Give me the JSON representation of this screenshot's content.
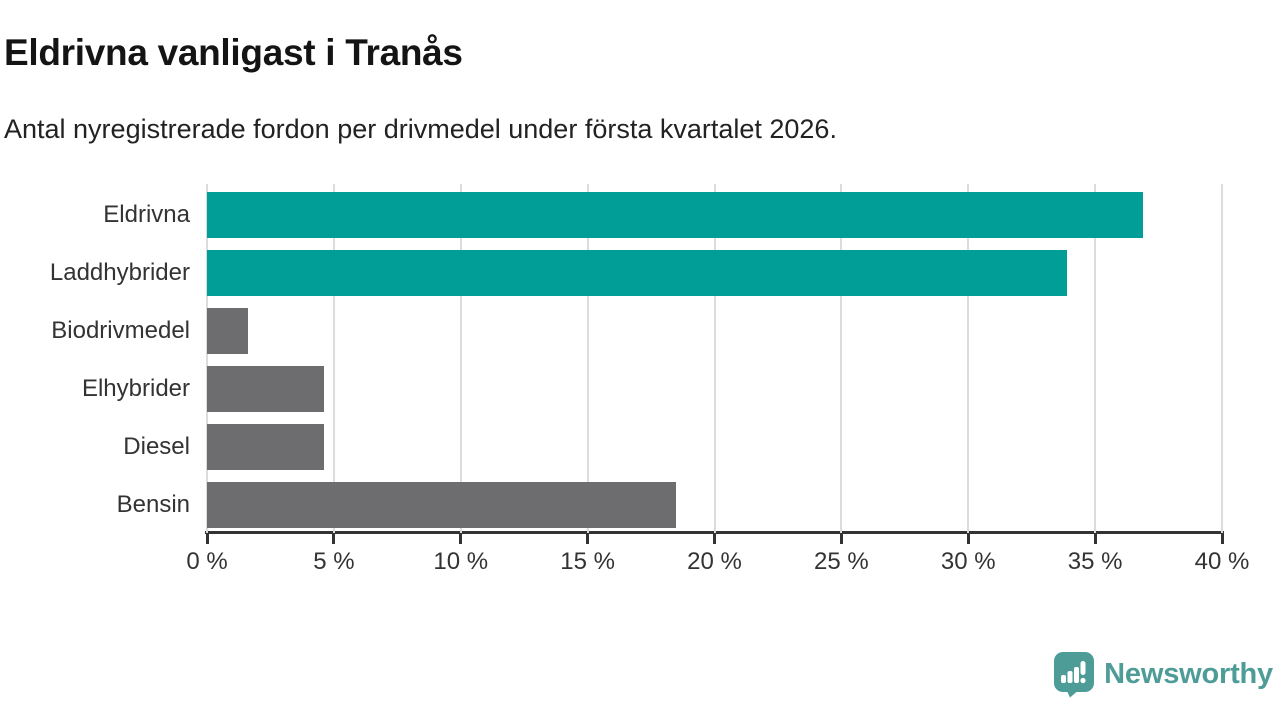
{
  "header": {
    "title": "Eldrivna vanligast i Tranås",
    "subtitle": "Antal nyregistrerade fordon per drivmedel under första kvartalet 2026."
  },
  "chart_data": {
    "type": "bar",
    "orientation": "horizontal",
    "title": "Eldrivna vanligast i Tranås",
    "subtitle": "Antal nyregistrerade fordon per drivmedel under första kvartalet 2026.",
    "categories": [
      "Eldrivna",
      "Laddhybrider",
      "Biodrivmedel",
      "Elhybrider",
      "Diesel",
      "Bensin"
    ],
    "values": [
      36.9,
      33.9,
      1.6,
      4.6,
      4.6,
      18.5
    ],
    "unit": "%",
    "xlabel": "",
    "ylabel": "",
    "xlim": [
      0,
      40
    ],
    "xticks": [
      0,
      5,
      10,
      15,
      20,
      25,
      30,
      35,
      40
    ],
    "xtick_labels": [
      "0 %",
      "5 %",
      "10 %",
      "15 %",
      "20 %",
      "25 %",
      "30 %",
      "35 %",
      "40 %"
    ],
    "grid": true,
    "legend": "none",
    "colors": {
      "highlight": "#009E96",
      "default": "#6D6D70"
    },
    "bar_colors": [
      "#009E96",
      "#009E96",
      "#6D6D70",
      "#6D6D70",
      "#6D6D70",
      "#6D6D70"
    ]
  },
  "footer": {
    "brand": "Newsworthy",
    "brand_color": "#4E9C97",
    "logo_icon": "newsworthy-speech-bubble-chart-icon"
  }
}
